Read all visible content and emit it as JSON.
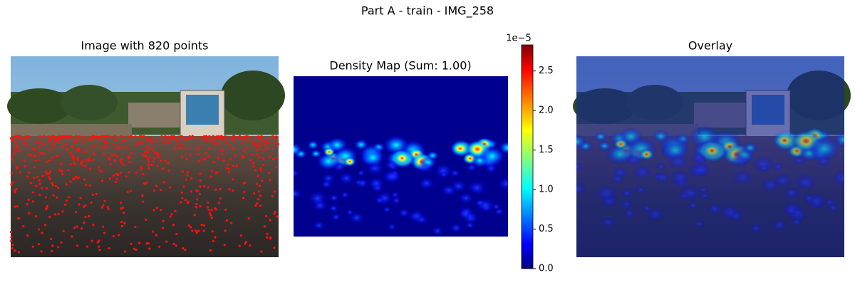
{
  "title": "Part A - train - IMG_258",
  "panels": [
    {
      "title": "Image with 820 points"
    },
    {
      "title": "Density Map (Sum: 1.00)"
    },
    {
      "title": "Overlay"
    }
  ],
  "colorbar": {
    "label": "1e−5",
    "lim": [
      0,
      2.83
    ],
    "ticks": [
      {
        "value": 0,
        "label": "0.0"
      },
      0.5,
      {
        "value": 1,
        "label": "1.0"
      },
      1.5,
      {
        "value": 2,
        "label": "2.0"
      },
      2.5
    ]
  }
}
